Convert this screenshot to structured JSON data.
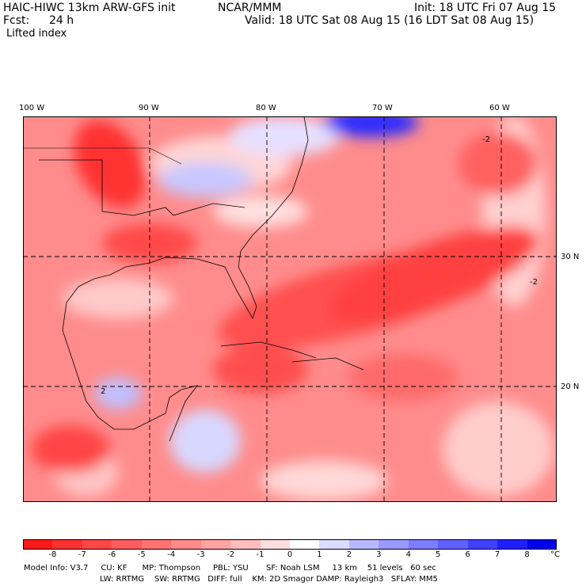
{
  "header": {
    "model_line": "HAIC-HIWC 13km ARW-GFS init",
    "org": "NCAR/MMM",
    "init": "Init: 18 UTC Fri 07 Aug 15",
    "fcst_label": "Fcst:",
    "fcst_value": "24 h",
    "valid": "Valid: 18 UTC Sat 08 Aug 15 (16 LDT Sat 08 Aug 15)",
    "field": "Lifted index"
  },
  "map": {
    "lon_labels": [
      "100 W",
      "90 W",
      "80 W",
      "70 W",
      "60 W"
    ],
    "lat_labels": [
      "30 N",
      "20 N"
    ],
    "contour_label": "-2",
    "contour_label_2": "2"
  },
  "colorbar": {
    "ticks": [
      "-8",
      "-7",
      "-6",
      "-5",
      "-4",
      "-3",
      "-2",
      "-1",
      "0",
      "1",
      "2",
      "3",
      "4",
      "5",
      "6",
      "7",
      "8"
    ],
    "unit": "°C",
    "colors": [
      "#ff1a1a",
      "#ff3030",
      "#ff4848",
      "#ff5d5d",
      "#ff7373",
      "#ff8a8a",
      "#ffa2a2",
      "#ffbdbd",
      "#ffdede",
      "#ffffff",
      "#dcdcff",
      "#b8b8ff",
      "#9a9aff",
      "#7d7dff",
      "#6060ff",
      "#4040ff",
      "#2020ff",
      "#0000ee"
    ]
  },
  "info": {
    "line1": "Model Info: V3.7     CU: KF      MP: Thompson     PBL: YSU       SF: Noah LSM     13 km    51 levels   60 sec",
    "line2": "LW: RRTMG    SW: RRTMG   DIFF: full    KM: 2D Smagor DAMP: Rayleigh3   SFLAY: MM5"
  }
}
